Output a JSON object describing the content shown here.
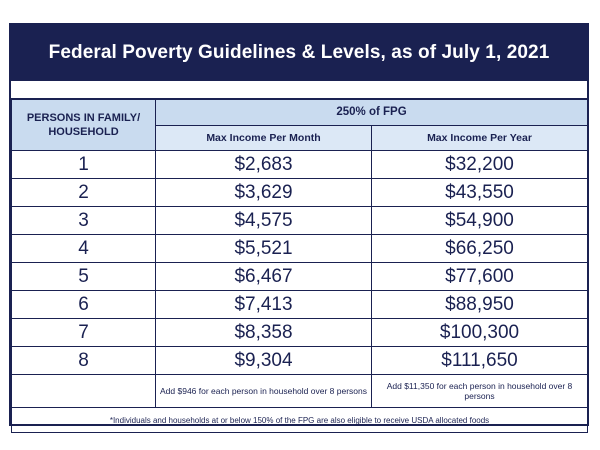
{
  "title": "Federal Poverty Guidelines & Levels, as of July 1, 2021",
  "table": {
    "left_header": "PERSONS IN FAMILY/ HOUSEHOLD",
    "group_header": "250% of FPG",
    "col_month": "Max Income Per Month",
    "col_year": "Max Income Per Year",
    "rows": [
      {
        "persons": "1",
        "month": "$2,683",
        "year": "$32,200"
      },
      {
        "persons": "2",
        "month": "$3,629",
        "year": "$43,550"
      },
      {
        "persons": "3",
        "month": "$4,575",
        "year": "$54,900"
      },
      {
        "persons": "4",
        "month": "$5,521",
        "year": "$66,250"
      },
      {
        "persons": "5",
        "month": "$6,467",
        "year": "$77,600"
      },
      {
        "persons": "6",
        "month": "$7,413",
        "year": "$88,950"
      },
      {
        "persons": "7",
        "month": "$8,358",
        "year": "$100,300"
      },
      {
        "persons": "8",
        "month": "$9,304",
        "year": "$111,650"
      }
    ],
    "note_month": "Add $946 for each person in household over 8 persons",
    "note_year": "Add $11,350 for each person in household over 8 persons"
  },
  "footnote": "*Individuals and households at or below 150% of the FPG are also eligible to receive USDA allocated foods",
  "colors": {
    "navy": "#1a2151",
    "header_blue": "#c9dbef"
  }
}
